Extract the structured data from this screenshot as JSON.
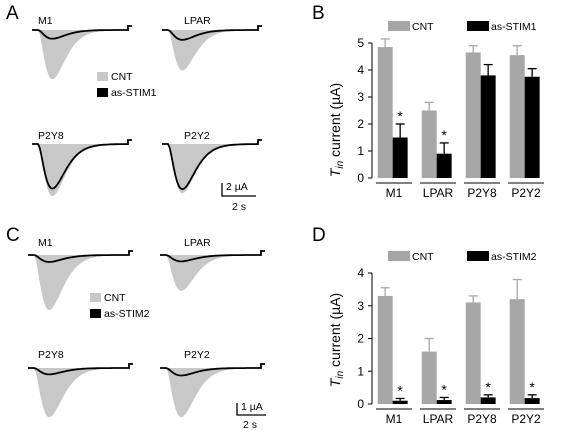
{
  "colors": {
    "cnt": "#c8c8c8",
    "cnt_bar": "#a6a6a6",
    "as": "#000000"
  },
  "panels": [
    {
      "letter": "A",
      "traces": [
        {
          "label": "M1",
          "cnt_peak": 0.85,
          "as_peak": 0.15
        },
        {
          "label": "LPAR",
          "cnt_peak": 0.7,
          "as_peak": 0.17
        },
        {
          "label": "P2Y8",
          "cnt_peak": 0.9,
          "as_peak": 0.77
        },
        {
          "label": "P2Y2",
          "cnt_peak": 0.85,
          "as_peak": 0.78
        }
      ],
      "legend": {
        "cnt": "CNT",
        "as": "as-STIM1"
      },
      "scale_y": "2 µA",
      "scale_x": "2 s"
    },
    {
      "letter": "C",
      "traces": [
        {
          "label": "M1",
          "cnt_peak": 0.95,
          "as_peak": 0.12
        },
        {
          "label": "LPAR",
          "cnt_peak": 0.62,
          "as_peak": 0.11
        },
        {
          "label": "P2Y8",
          "cnt_peak": 0.85,
          "as_peak": 0.11
        },
        {
          "label": "P2Y2",
          "cnt_peak": 0.85,
          "as_peak": 0.13
        }
      ],
      "legend": {
        "cnt": "CNT",
        "as": "as-STIM2"
      },
      "scale_y": "1 µA",
      "scale_x": "2 s"
    }
  ],
  "chart_data": [
    {
      "panel": "B",
      "type": "bar",
      "categories": [
        "M1",
        "LPAR",
        "P2Y8",
        "P2Y2"
      ],
      "series": [
        {
          "name": "CNT",
          "values": [
            4.85,
            2.5,
            4.65,
            4.55
          ],
          "errors": [
            0.3,
            0.3,
            0.25,
            0.35
          ]
        },
        {
          "name": "as-STIM1",
          "values": [
            1.5,
            0.9,
            3.8,
            3.75
          ],
          "errors": [
            0.5,
            0.4,
            0.4,
            0.3
          ]
        }
      ],
      "significance": [
        "*",
        "*",
        "",
        ""
      ],
      "ylim": [
        0,
        5
      ],
      "yticks": [
        "0",
        "1",
        "2",
        "3",
        "4",
        "5"
      ],
      "ylabel_main": "T",
      "ylabel_sub": "in",
      "ylabel_rest": " current (µA)",
      "legend": "top"
    },
    {
      "panel": "D",
      "type": "bar",
      "categories": [
        "M1",
        "LPAR",
        "P2Y8",
        "P2Y2"
      ],
      "series": [
        {
          "name": "CNT",
          "values": [
            3.3,
            1.6,
            3.1,
            3.2
          ],
          "errors": [
            0.25,
            0.4,
            0.2,
            0.6
          ]
        },
        {
          "name": "as-STIM2",
          "values": [
            0.1,
            0.12,
            0.2,
            0.18
          ],
          "errors": [
            0.07,
            0.08,
            0.08,
            0.1
          ]
        }
      ],
      "significance": [
        "*",
        "*",
        "*",
        "*"
      ],
      "ylim": [
        0,
        4
      ],
      "yticks": [
        "0",
        "1",
        "2",
        "3",
        "4"
      ],
      "ylabel_main": "T",
      "ylabel_sub": "in",
      "ylabel_rest": " current (µA)",
      "legend": "top"
    }
  ]
}
